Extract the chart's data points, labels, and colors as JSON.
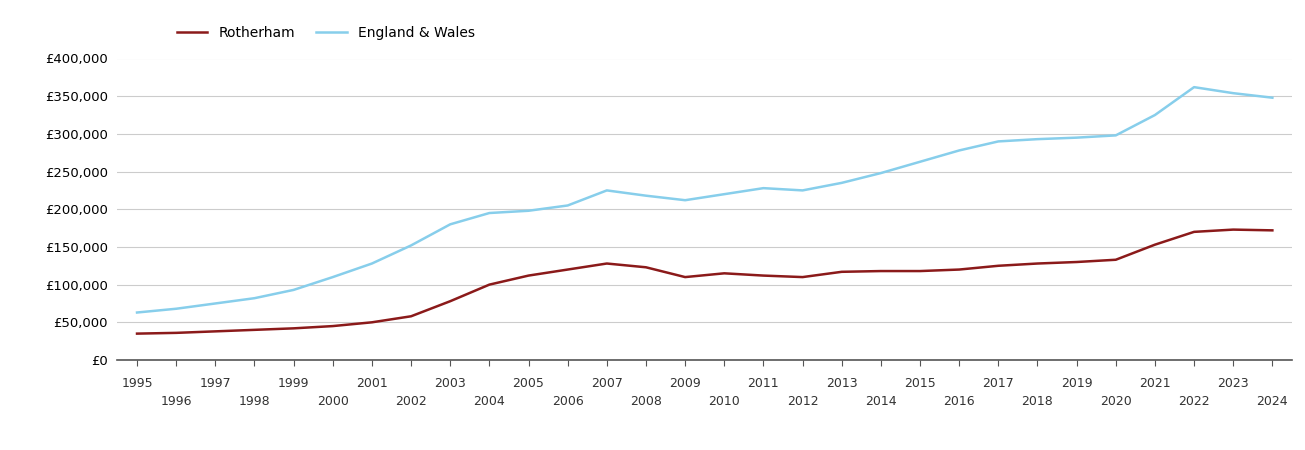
{
  "rotherham_years": [
    1995,
    1996,
    1997,
    1998,
    1999,
    2000,
    2001,
    2002,
    2003,
    2004,
    2005,
    2006,
    2007,
    2008,
    2009,
    2010,
    2011,
    2012,
    2013,
    2014,
    2015,
    2016,
    2017,
    2018,
    2019,
    2020,
    2021,
    2022,
    2023,
    2024
  ],
  "rotherham_values": [
    35000,
    36000,
    38000,
    40000,
    42000,
    45000,
    50000,
    58000,
    78000,
    100000,
    112000,
    120000,
    128000,
    123000,
    110000,
    115000,
    112000,
    110000,
    117000,
    118000,
    118000,
    120000,
    125000,
    128000,
    130000,
    133000,
    153000,
    170000,
    173000,
    172000
  ],
  "england_years": [
    1995,
    1996,
    1997,
    1998,
    1999,
    2000,
    2001,
    2002,
    2003,
    2004,
    2005,
    2006,
    2007,
    2008,
    2009,
    2010,
    2011,
    2012,
    2013,
    2014,
    2015,
    2016,
    2017,
    2018,
    2019,
    2020,
    2021,
    2022,
    2023,
    2024
  ],
  "england_values": [
    63000,
    68000,
    75000,
    82000,
    93000,
    110000,
    128000,
    152000,
    180000,
    195000,
    198000,
    205000,
    225000,
    218000,
    212000,
    220000,
    228000,
    225000,
    235000,
    248000,
    263000,
    278000,
    290000,
    293000,
    295000,
    298000,
    325000,
    362000,
    354000,
    348000
  ],
  "rotherham_color": "#8B1A1A",
  "england_color": "#87CEEB",
  "background_color": "#ffffff",
  "grid_color": "#cccccc",
  "ylim": [
    0,
    400000
  ],
  "yticks": [
    0,
    50000,
    100000,
    150000,
    200000,
    250000,
    300000,
    350000,
    400000
  ],
  "legend_rotherham": "Rotherham",
  "legend_england": "England & Wales",
  "odd_years": [
    1995,
    1997,
    1999,
    2001,
    2003,
    2005,
    2007,
    2009,
    2011,
    2013,
    2015,
    2017,
    2019,
    2021,
    2023
  ],
  "even_years": [
    1996,
    1998,
    2000,
    2002,
    2004,
    2006,
    2008,
    2010,
    2012,
    2014,
    2016,
    2018,
    2020,
    2022,
    2024
  ]
}
